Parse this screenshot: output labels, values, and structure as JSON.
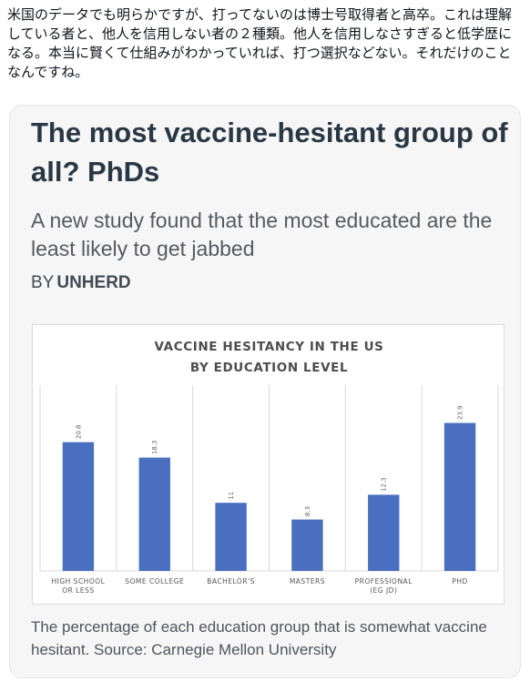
{
  "tweet": {
    "text": "米国のデータでも明らかですが、打ってないのは博士号取得者と高卒。これは理解している者と、他人を信用しない者の２種類。他人を信用しなさすぎると低学歴になる。本当に賢くて仕組みがわかっていれば、打つ選択などない。それだけのことなんですね。"
  },
  "card": {
    "headline": "The most vaccine-hesitant group of all? PhDs",
    "subhead": "A new study found that the most educated are the least likely to get jabbed",
    "byline_prefix": "BY",
    "byline_publisher": "UNHERD",
    "caption": "The percentage of each education group that is somewhat vaccine hesitant. Source: Carnegie Mellon University"
  },
  "chart_data": {
    "type": "bar",
    "title_lines": [
      "VACCINE HESITANCY IN THE US",
      "BY EDUCATION LEVEL"
    ],
    "categories": [
      [
        "HIGH SCHOOL",
        "OR LESS"
      ],
      [
        "SOME COLLEGE"
      ],
      [
        "BACHELOR'S"
      ],
      [
        "MASTERS"
      ],
      [
        "PROFESSIONAL",
        "(EG JD)"
      ],
      [
        "PHD"
      ]
    ],
    "values": [
      20.8,
      18.3,
      11,
      8.3,
      12.3,
      23.9
    ],
    "value_labels": [
      "20.8",
      "18.3",
      "11",
      "8.3",
      "12.3",
      "23.9"
    ],
    "ylim": [
      0,
      30
    ],
    "grid": true,
    "bar_color": "#4a6fc1",
    "grid_color": "#d9d9d9"
  }
}
